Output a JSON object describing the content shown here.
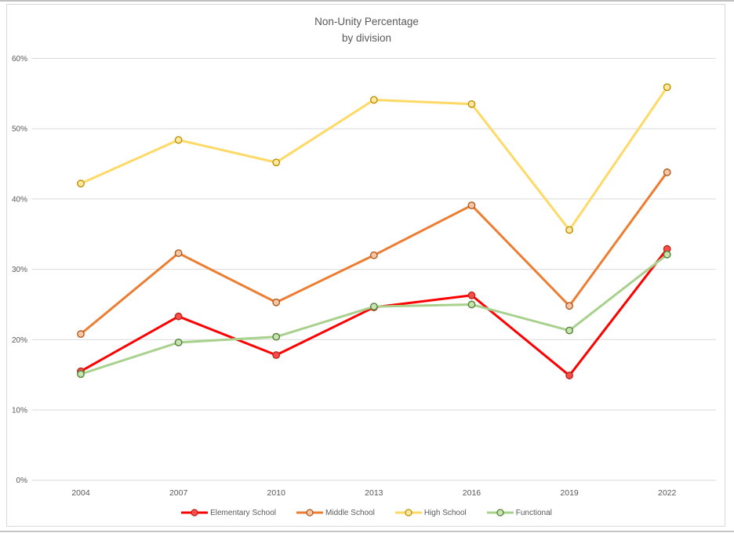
{
  "title": {
    "line1": "Non-Unity Percentage",
    "line2": "by division"
  },
  "chart_data": {
    "type": "line",
    "categories": [
      "2004",
      "2007",
      "2010",
      "2013",
      "2016",
      "2019",
      "2022"
    ],
    "series": [
      {
        "name": "Elementary School",
        "line_color": "#FF0000",
        "marker_fill": "#FF4B4B",
        "marker_stroke": "#B22A1B",
        "values": [
          15.5,
          23.3,
          17.8,
          24.6,
          26.3,
          14.9,
          32.9
        ]
      },
      {
        "name": "Middle School",
        "line_color": "#ED7D31",
        "marker_fill": "#F6C7A4",
        "marker_stroke": "#AE5A21",
        "values": [
          20.8,
          32.3,
          25.3,
          32.0,
          39.1,
          24.8,
          43.8
        ]
      },
      {
        "name": "High School",
        "line_color": "#FFD966",
        "marker_fill": "#FFE9A0",
        "marker_stroke": "#BF8F00",
        "values": [
          42.2,
          48.4,
          45.2,
          54.1,
          53.5,
          35.6,
          55.9
        ]
      },
      {
        "name": "Functional",
        "line_color": "#A9D18E",
        "marker_fill": "#C9E4B4",
        "marker_stroke": "#538135",
        "values": [
          15.1,
          19.6,
          20.4,
          24.7,
          25.0,
          21.3,
          32.1
        ]
      }
    ],
    "title": "Non-Unity Percentage by division",
    "xlabel": "",
    "ylabel": "",
    "ylim": [
      0,
      60
    ],
    "ytick_step": 10,
    "ytick_suffix": "%",
    "grid": true,
    "legend_position": "bottom"
  },
  "style": {
    "grid_color": "#D9D9D9",
    "axis_text_color": "#595959",
    "title_color": "#595959"
  }
}
